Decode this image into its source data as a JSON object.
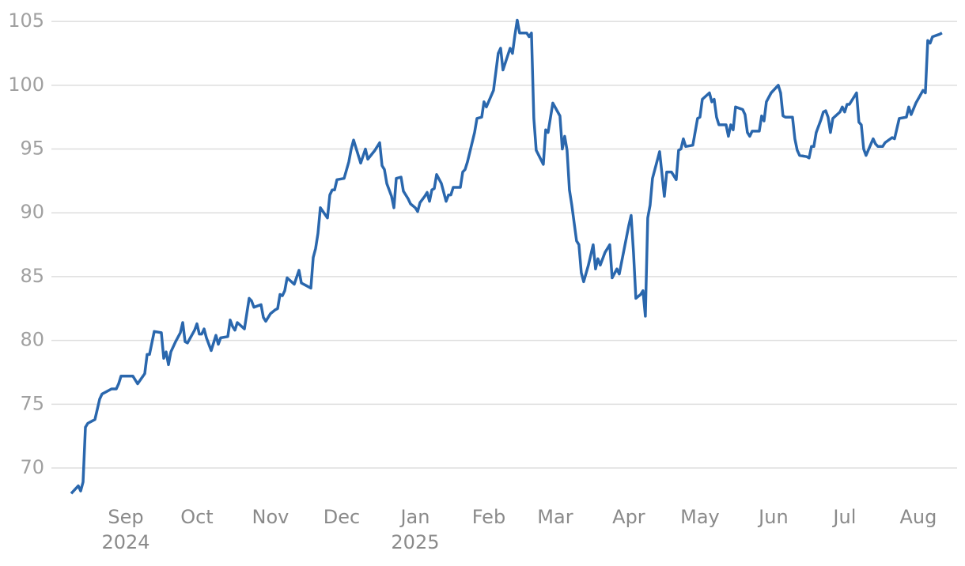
{
  "chart_data": {
    "type": "line",
    "color": "#2a67ad",
    "grid": true,
    "x": [
      0,
      3,
      4,
      5,
      6,
      7,
      10,
      12,
      13,
      17,
      19,
      20,
      21,
      24,
      26,
      28,
      31,
      32,
      33,
      35,
      38,
      39,
      40,
      41,
      42,
      44,
      46,
      47,
      48,
      49,
      52,
      53,
      54,
      55,
      56,
      57,
      59,
      61,
      62,
      63,
      66,
      67,
      68,
      69,
      70,
      73,
      75,
      76,
      77,
      80,
      81,
      82,
      84,
      86,
      87,
      88,
      89,
      90,
      91,
      94,
      96,
      97,
      99,
      101,
      102,
      103,
      104,
      105,
      108,
      109,
      110,
      111,
      112,
      115,
      117,
      118,
      119,
      120,
      122,
      124,
      125,
      128,
      130,
      131,
      132,
      133,
      135,
      136,
      137,
      139,
      140,
      142,
      143,
      145,
      146,
      147,
      149,
      150,
      151,
      152,
      153,
      154,
      156,
      158,
      159,
      160,
      161,
      164,
      165,
      166,
      167,
      170,
      171,
      173,
      174,
      175,
      178,
      180,
      181,
      182,
      185,
      186,
      187,
      188,
      189,
      192,
      193,
      194,
      195,
      196,
      199,
      200,
      201,
      203,
      206,
      207,
      208,
      209,
      210,
      211,
      213,
      214,
      215,
      216,
      218,
      220,
      221,
      222,
      223,
      225,
      227,
      228,
      230,
      231,
      233,
      235,
      236,
      237,
      238,
      240,
      241,
      242,
      243,
      244,
      245,
      248,
      250,
      251,
      253,
      255,
      256,
      257,
      258,
      259,
      262,
      264,
      265,
      266,
      269,
      270,
      271,
      272,
      273,
      276,
      277,
      278,
      279,
      280,
      283,
      284,
      285,
      286,
      287,
      290,
      291,
      292,
      293,
      295,
      298,
      299,
      300,
      301,
      304,
      305,
      306,
      307,
      310,
      311,
      312,
      313,
      314,
      316,
      317,
      318,
      319,
      320,
      321,
      324,
      325,
      326,
      327,
      328,
      331,
      332,
      333,
      334,
      335,
      338,
      339,
      340,
      342,
      343,
      346,
      347,
      348,
      349,
      352,
      353,
      354,
      356,
      359,
      360,
      361,
      362,
      363,
      366,
      367
    ],
    "values": [
      68.0,
      68.6,
      68.2,
      68.9,
      73.2,
      73.5,
      73.8,
      75.4,
      75.8,
      76.2,
      76.2,
      76.6,
      77.2,
      77.2,
      77.2,
      76.6,
      77.4,
      78.9,
      78.9,
      80.7,
      80.6,
      78.6,
      79.1,
      78.1,
      79.1,
      79.9,
      80.6,
      81.4,
      79.9,
      79.8,
      80.8,
      81.3,
      80.5,
      80.5,
      80.9,
      80.2,
      79.2,
      80.4,
      79.7,
      80.2,
      80.3,
      81.6,
      81.1,
      80.8,
      81.4,
      80.9,
      83.3,
      83.1,
      82.6,
      82.8,
      81.8,
      81.5,
      82.1,
      82.4,
      82.5,
      83.6,
      83.5,
      83.9,
      84.9,
      84.4,
      85.5,
      84.5,
      84.3,
      84.1,
      86.5,
      87.2,
      88.4,
      90.4,
      89.6,
      91.4,
      91.8,
      91.8,
      92.6,
      92.7,
      94.0,
      95.0,
      95.7,
      95.1,
      93.9,
      95.0,
      94.2,
      94.9,
      95.5,
      93.7,
      93.4,
      92.3,
      91.3,
      90.4,
      92.7,
      92.8,
      91.7,
      91.1,
      90.7,
      90.4,
      90.1,
      90.8,
      91.3,
      91.6,
      90.9,
      91.8,
      91.9,
      93.0,
      92.3,
      90.9,
      91.4,
      91.4,
      92.0,
      92.0,
      93.2,
      93.4,
      94.0,
      96.3,
      97.4,
      97.5,
      98.7,
      98.3,
      99.6,
      102.5,
      102.9,
      101.2,
      102.9,
      102.5,
      103.9,
      105.1,
      104.1,
      104.1,
      103.8,
      104.1,
      97.4,
      94.9,
      93.8,
      96.5,
      96.3,
      98.6,
      97.6,
      95.0,
      96.0,
      94.9,
      91.8,
      90.6,
      87.8,
      87.5,
      85.3,
      84.6,
      85.9,
      87.5,
      85.6,
      86.4,
      85.9,
      86.9,
      87.5,
      84.9,
      85.6,
      85.2,
      87.1,
      89.0,
      89.8,
      86.9,
      83.3,
      83.6,
      83.9,
      81.9,
      89.6,
      90.6,
      92.7,
      94.8,
      91.3,
      93.2,
      93.2,
      92.6,
      94.9,
      95.0,
      95.8,
      95.2,
      95.3,
      97.4,
      97.5,
      98.9,
      99.4,
      98.7,
      98.9,
      97.5,
      96.9,
      96.9,
      96.0,
      96.9,
      96.5,
      98.3,
      98.1,
      97.7,
      96.3,
      96.0,
      96.4,
      96.4,
      97.6,
      97.2,
      98.7,
      99.4,
      100.0,
      99.4,
      97.6,
      97.5,
      97.5,
      95.8,
      94.9,
      94.5,
      94.4,
      94.3,
      95.2,
      95.2,
      96.3,
      97.3,
      97.9,
      98.0,
      97.5,
      96.3,
      97.4,
      97.9,
      98.3,
      97.9,
      98.5,
      98.5,
      99.4,
      97.1,
      96.9,
      95.0,
      94.5,
      95.8,
      95.4,
      95.2,
      95.2,
      95.5,
      95.9,
      95.8,
      96.6,
      97.4,
      97.5,
      98.3,
      97.7,
      98.6,
      99.6,
      99.4,
      103.5,
      103.3,
      103.8,
      104.0,
      104.1
    ],
    "xlim": [
      -30,
      376.7
    ],
    "xticks": [
      {
        "value": 23,
        "label": "Sep\n2024"
      },
      {
        "value": 53,
        "label": "Oct"
      },
      {
        "value": 84,
        "label": "Nov"
      },
      {
        "value": 114,
        "label": "Dec"
      },
      {
        "value": 145,
        "label": "Jan\n2025"
      },
      {
        "value": 176,
        "label": "Feb"
      },
      {
        "value": 204,
        "label": "Mar"
      },
      {
        "value": 235,
        "label": "Apr"
      },
      {
        "value": 265,
        "label": "May"
      },
      {
        "value": 296,
        "label": "Jun"
      },
      {
        "value": 326,
        "label": "Jul"
      },
      {
        "value": 357,
        "label": "Aug"
      }
    ],
    "ylim": [
      68,
      106
    ],
    "yticks": [
      70,
      75,
      80,
      85,
      90,
      95,
      100,
      105
    ]
  }
}
